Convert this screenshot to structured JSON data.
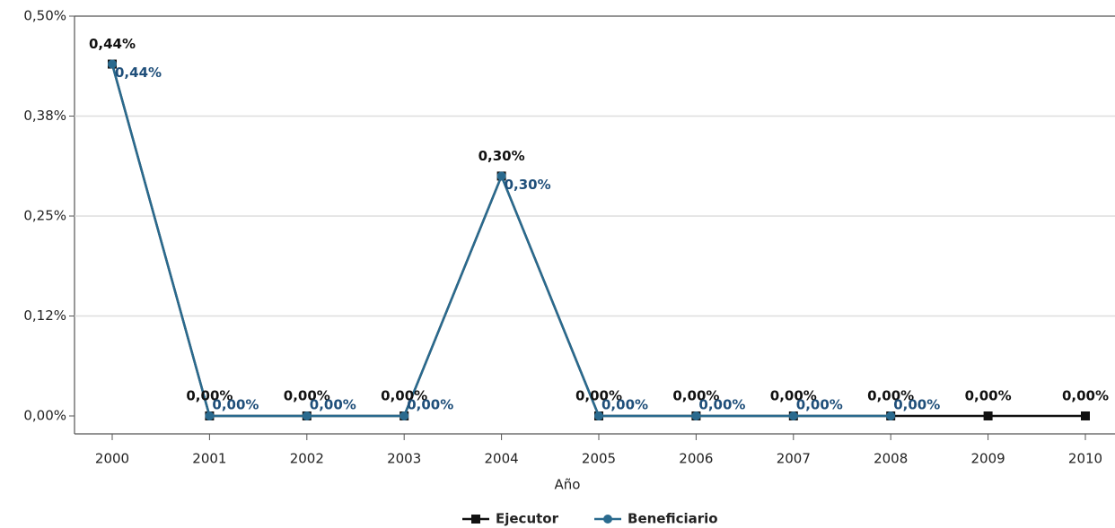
{
  "chart_data": {
    "type": "line",
    "x_label": "Año",
    "categories": [
      "2000",
      "2001",
      "2002",
      "2003",
      "2004",
      "2005",
      "2006",
      "2007",
      "2008",
      "2009",
      "2010"
    ],
    "series": [
      {
        "name": "Ejecutor",
        "color": "#111111",
        "label_color": "#111111",
        "marker": "square",
        "values": [
          0.44,
          0,
          0,
          0,
          0.3,
          0,
          0,
          0,
          0,
          0,
          0
        ],
        "value_labels": [
          "0,44%",
          "0,00%",
          "0,00%",
          "0,00%",
          "0,30%",
          "0,00%",
          "0,00%",
          "0,00%",
          "0,00%",
          "0,00%",
          "0,00%"
        ]
      },
      {
        "name": "Beneficiario",
        "color": "#2a6a8e",
        "label_color": "#1f4f7a",
        "marker": "circle",
        "values": [
          0.44,
          0,
          0,
          0,
          0.3,
          0,
          0,
          0,
          0,
          null,
          null
        ],
        "value_labels": [
          "0,44%",
          "0,00%",
          "0,00%",
          "0,00%",
          "0,30%",
          "0,00%",
          "0,00%",
          "0,00%",
          "0,00%",
          null,
          null
        ]
      }
    ],
    "ylim": [
      0,
      0.5
    ],
    "yticks": [
      {
        "value": 0,
        "label": "0,00%"
      },
      {
        "value": 0.125,
        "label": "0,12%"
      },
      {
        "value": 0.25,
        "label": "0,25%"
      },
      {
        "value": 0.375,
        "label": "0,38%"
      },
      {
        "value": 0.5,
        "label": "0,50%"
      }
    ],
    "grid": true
  }
}
